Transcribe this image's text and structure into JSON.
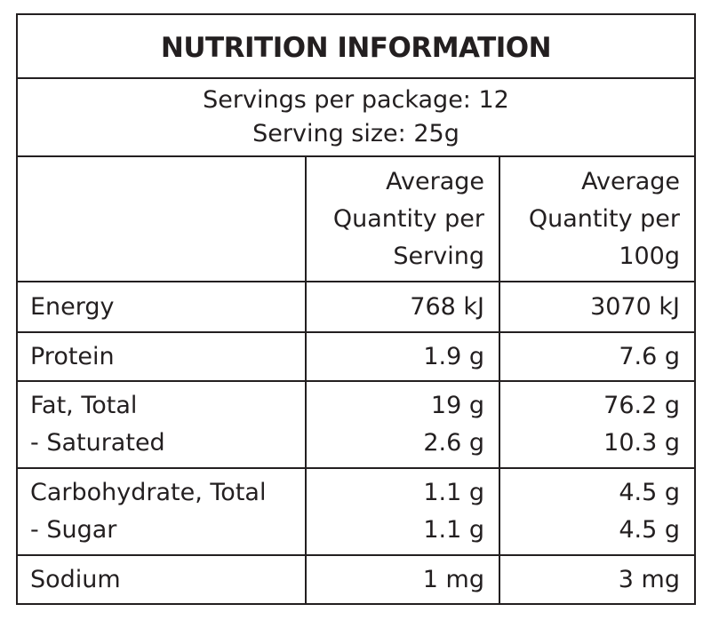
{
  "panel": {
    "title": "NUTRITION INFORMATION",
    "servings_per_package": "Servings per package: 12",
    "serving_size": "Serving size: 25g"
  },
  "columns": {
    "per_serving": [
      "Average",
      "Quantity per",
      "Serving"
    ],
    "per_100g": [
      "Average",
      "Quantity per",
      "100g"
    ]
  },
  "rows": [
    {
      "label": [
        "Energy"
      ],
      "serving": [
        "768 kJ"
      ],
      "per100": [
        "3070 kJ"
      ]
    },
    {
      "label": [
        "Protein"
      ],
      "serving": [
        "1.9 g"
      ],
      "per100": [
        "7.6 g"
      ]
    },
    {
      "label": [
        "Fat, Total",
        "- Saturated"
      ],
      "serving": [
        "19 g",
        "2.6 g"
      ],
      "per100": [
        "76.2 g",
        "10.3 g"
      ]
    },
    {
      "label": [
        "Carbohydrate, Total",
        "- Sugar"
      ],
      "serving": [
        "1.1 g",
        "1.1 g"
      ],
      "per100": [
        "4.5 g",
        "4.5 g"
      ]
    },
    {
      "label": [
        "Sodium"
      ],
      "serving": [
        "1 mg"
      ],
      "per100": [
        "3 mg"
      ]
    }
  ]
}
